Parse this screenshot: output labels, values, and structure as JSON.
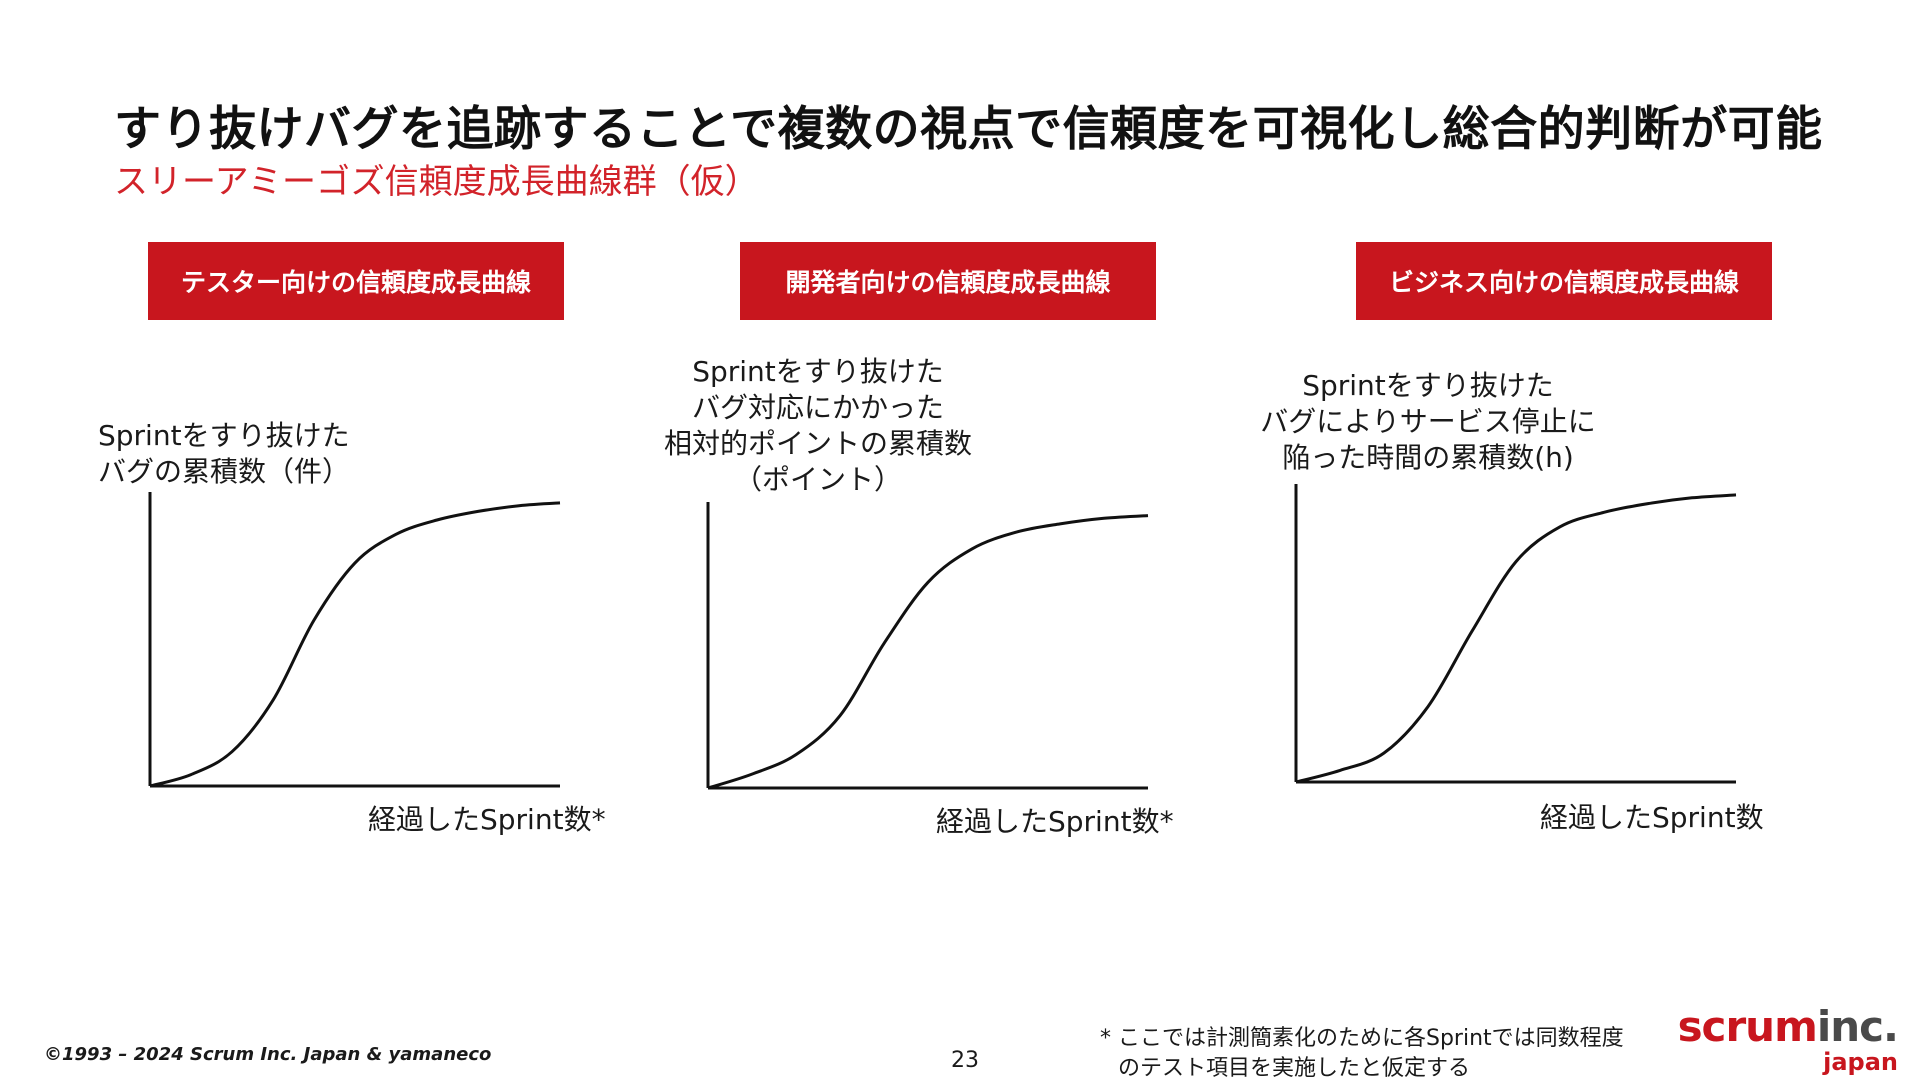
{
  "title": "すり抜けバグを追跡することで複数の視点で信頼度を可視化し総合的判断が可能",
  "subtitle": "スリーアミーゴズ信頼度成長曲線群（仮）",
  "panels": [
    {
      "badge": "テスター向けの信頼度成長曲線",
      "ylabel_lines": [
        "Sprintをすり抜けた",
        "バグの累積数（件）"
      ],
      "xlabel": "経過したSprint数*"
    },
    {
      "badge": "開発者向けの信頼度成長曲線",
      "ylabel_lines": [
        "Sprintをすり抜けた",
        "バグ対応にかかった",
        "相対的ポイントの累積数",
        "（ポイント）"
      ],
      "xlabel": "経過したSprint数*"
    },
    {
      "badge": "ビジネス向けの信頼度成長曲線",
      "ylabel_lines": [
        "Sprintをすり抜けた",
        "バグによりサービス停止に",
        "陥った時間の累積数(h)"
      ],
      "xlabel": "経過したSprint数"
    }
  ],
  "chart_data": [
    {
      "type": "line",
      "title": "テスター向けの信頼度成長曲線",
      "xlabel": "経過したSprint数*",
      "ylabel": "Sprintをすり抜けたバグの累積数（件）",
      "x": [
        0,
        0.1,
        0.2,
        0.3,
        0.4,
        0.5,
        0.6,
        0.7,
        0.8,
        0.9,
        1.0
      ],
      "values": [
        0,
        0.04,
        0.12,
        0.3,
        0.58,
        0.78,
        0.88,
        0.93,
        0.96,
        0.98,
        0.99
      ],
      "grid": false
    },
    {
      "type": "line",
      "title": "開発者向けの信頼度成長曲線",
      "xlabel": "経過したSprint数*",
      "ylabel": "Sprintをすり抜けたバグ対応にかかった相対的ポイントの累積数（ポイント）",
      "x": [
        0,
        0.1,
        0.2,
        0.3,
        0.4,
        0.5,
        0.6,
        0.7,
        0.8,
        0.9,
        1.0
      ],
      "values": [
        0,
        0.05,
        0.12,
        0.26,
        0.52,
        0.74,
        0.86,
        0.92,
        0.95,
        0.97,
        0.98
      ],
      "grid": false
    },
    {
      "type": "line",
      "title": "ビジネス向けの信頼度成長曲線",
      "xlabel": "経過したSprint数",
      "ylabel": "Sprintをすり抜けたバグによりサービス停止に陥った時間の累積数(h)",
      "x": [
        0,
        0.1,
        0.2,
        0.3,
        0.4,
        0.5,
        0.6,
        0.7,
        0.8,
        0.9,
        1.0
      ],
      "values": [
        0,
        0.04,
        0.1,
        0.26,
        0.52,
        0.76,
        0.88,
        0.93,
        0.96,
        0.98,
        0.99
      ],
      "grid": false
    }
  ],
  "footer": {
    "copyright": "©1993 – 2024 Scrum Inc. Japan & yamaneco",
    "page_number": "23",
    "footnote_line1": "* ここでは計測簡素化のために各Sprintでは同数程度",
    "footnote_line2": "のテスト項目を実施したと仮定する"
  },
  "logo": {
    "part1": "scrum",
    "part2": "inc.",
    "part3": "japan"
  },
  "colors": {
    "accent": "#c8161e",
    "subtitle": "#d2232a",
    "text": "#1a1a1a"
  }
}
